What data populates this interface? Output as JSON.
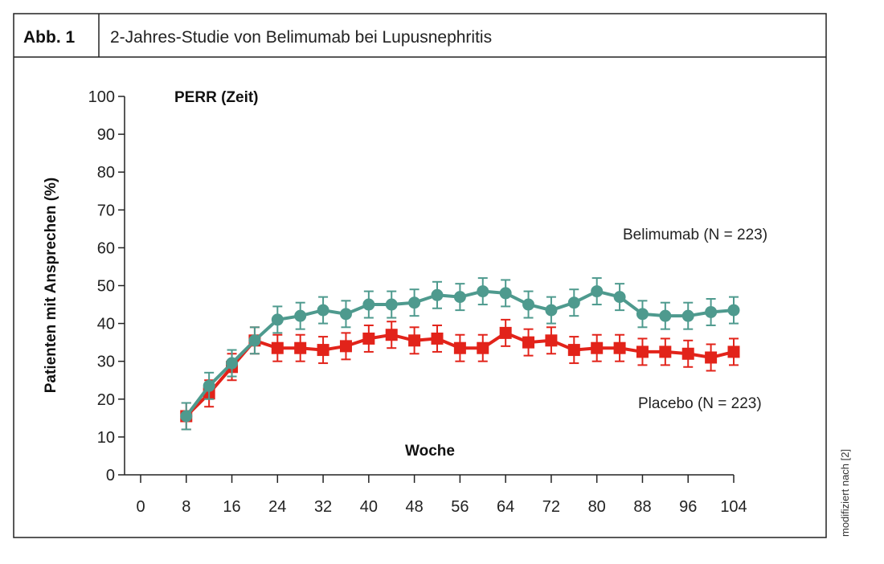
{
  "header": {
    "figure_label": "Abb. 1",
    "title": "2-Jahres-Studie von Belimumab bei Lupusnephritis"
  },
  "source_note": "modifiziert nach [2]",
  "chart_data": {
    "type": "line",
    "title": "PERR (Zeit)",
    "xlabel": "Woche",
    "ylabel": "Patienten mit Ansprechen (%)",
    "xlim": [
      0,
      104
    ],
    "ylim": [
      0,
      100
    ],
    "xticks": [
      0,
      8,
      16,
      24,
      32,
      40,
      48,
      56,
      64,
      72,
      80,
      88,
      96,
      104
    ],
    "yticks": [
      0,
      10,
      20,
      30,
      40,
      50,
      60,
      70,
      80,
      90,
      100
    ],
    "grid": false,
    "x": [
      8,
      12,
      16,
      20,
      24,
      28,
      32,
      36,
      40,
      44,
      48,
      52,
      56,
      60,
      64,
      68,
      72,
      76,
      80,
      84,
      88,
      92,
      96,
      100,
      104
    ],
    "series": [
      {
        "name": "Belimumab (N = 223)",
        "color": "#4e9a8e",
        "marker": "circle",
        "values": [
          15.5,
          23.5,
          29.5,
          35.5,
          41,
          42,
          43.5,
          42.5,
          45,
          45,
          45.5,
          47.5,
          47,
          48.5,
          48,
          45,
          43.5,
          45.5,
          48.5,
          47,
          42.5,
          42,
          42,
          43,
          43.5
        ],
        "error": 3.5
      },
      {
        "name": "Placebo (N = 223)",
        "color": "#e2231a",
        "marker": "square",
        "values": [
          15.5,
          21.5,
          28.5,
          35.5,
          33.5,
          33.5,
          33,
          34,
          36,
          37,
          35.5,
          36,
          33.5,
          33.5,
          37.5,
          35,
          35.5,
          33,
          33.5,
          33.5,
          32.5,
          32.5,
          32,
          31,
          32.5
        ],
        "error": 3.5
      }
    ]
  }
}
